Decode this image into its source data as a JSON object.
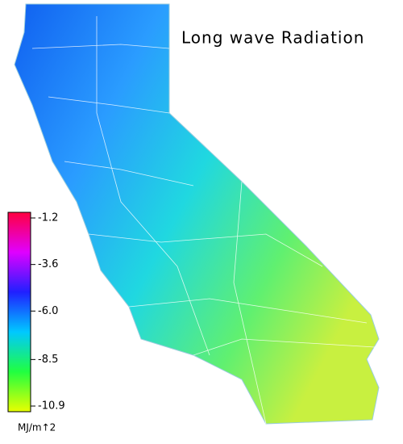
{
  "title": "Long wave Radiation",
  "colorbar": {
    "lim": [
      -1.2,
      -10.9
    ],
    "ticks": [
      -1.2,
      -3.6,
      {
        "value": -6,
        "label": "-6.0"
      },
      -8.5,
      -10.9
    ],
    "colors": [
      "#ff0040",
      "#e000ff",
      "#2020ff",
      "#00c8ff",
      "#20ff40",
      "#e8ff00"
    ],
    "unit": "MJ/m↑2"
  }
}
